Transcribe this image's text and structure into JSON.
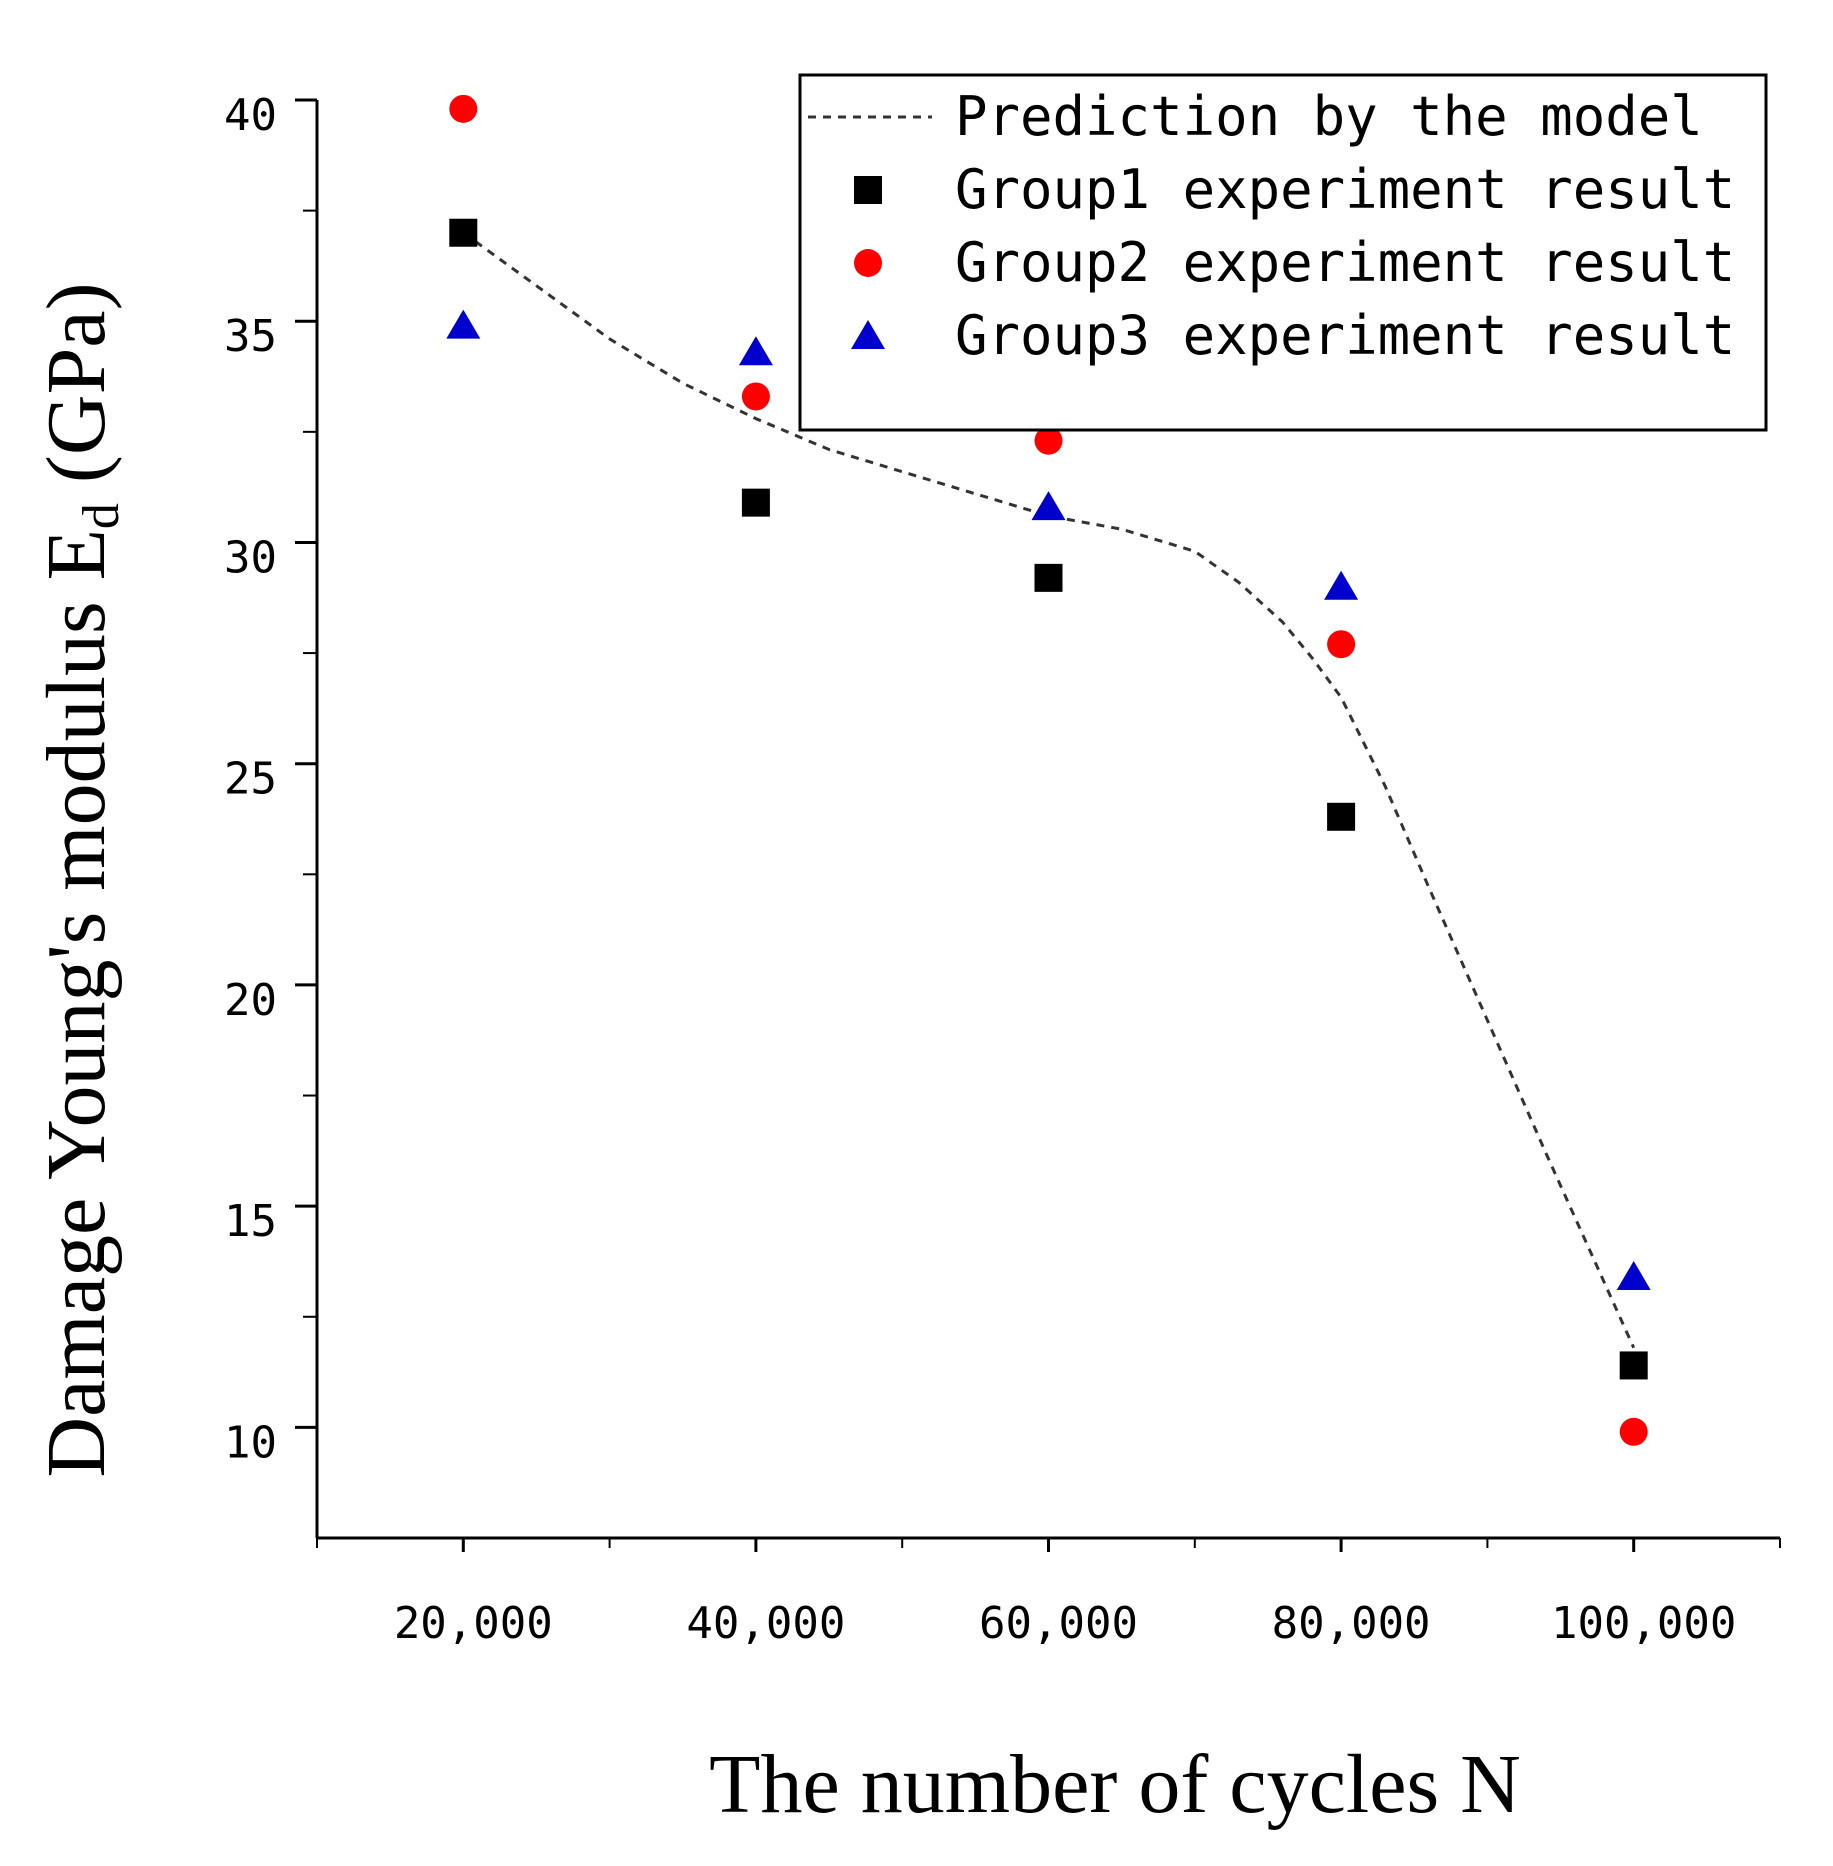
{
  "chart_data": {
    "type": "scatter",
    "title": "",
    "xlabel": "The number of cycles N",
    "ylabel_main": "Damage Young's modulus E",
    "ylabel_sub": "d",
    "ylabel_unit": "(GPa)",
    "x_categories": [
      "20,000",
      "40,000",
      "60,000",
      "80,000",
      "100,000"
    ],
    "x_values": [
      20000,
      40000,
      60000,
      80000,
      100000
    ],
    "xlim": [
      10000,
      110000
    ],
    "x_minor_ticks": [
      10000,
      30000,
      50000,
      70000,
      90000,
      110000
    ],
    "ylim": [
      7.5,
      40
    ],
    "y_ticks": [
      10,
      15,
      20,
      25,
      30,
      35,
      40
    ],
    "y_minor_ticks": [
      12.5,
      17.5,
      22.5,
      27.5,
      32.5,
      37.5
    ],
    "legend_position": "top-right",
    "series": [
      {
        "name": "Prediction by the model",
        "kind": "line",
        "style": "dashed",
        "color": "#333333",
        "x": [
          20000,
          25000,
          30000,
          35000,
          40000,
          45000,
          50000,
          55000,
          60000,
          65000,
          70000,
          73000,
          76000,
          78000,
          80000,
          83000,
          86000,
          90000,
          94000,
          97000,
          100000
        ],
        "y": [
          37,
          35.8,
          34.6,
          33.6,
          32.8,
          32.1,
          31.6,
          31.1,
          30.6,
          30.3,
          29.8,
          29.1,
          28.2,
          27.4,
          26.5,
          24.5,
          22.2,
          19.2,
          16.2,
          14.0,
          11.8
        ]
      },
      {
        "name": "Group1 experiment result",
        "kind": "marker",
        "marker": "square",
        "color": "#000000",
        "x": [
          20000,
          40000,
          60000,
          80000,
          100000
        ],
        "y": [
          37.0,
          30.9,
          29.2,
          23.8,
          11.4
        ]
      },
      {
        "name": "Group2 experiment result",
        "kind": "marker",
        "marker": "circle",
        "color": "#ff0000",
        "x": [
          20000,
          40000,
          60000,
          80000,
          100000
        ],
        "y": [
          39.8,
          33.3,
          32.3,
          27.7,
          9.9
        ]
      },
      {
        "name": "Group3 experiment result",
        "kind": "marker",
        "marker": "triangle",
        "color": "#0000cc",
        "x": [
          20000,
          40000,
          60000,
          80000,
          100000
        ],
        "y": [
          34.9,
          34.3,
          30.8,
          29.0,
          13.4
        ]
      }
    ]
  }
}
